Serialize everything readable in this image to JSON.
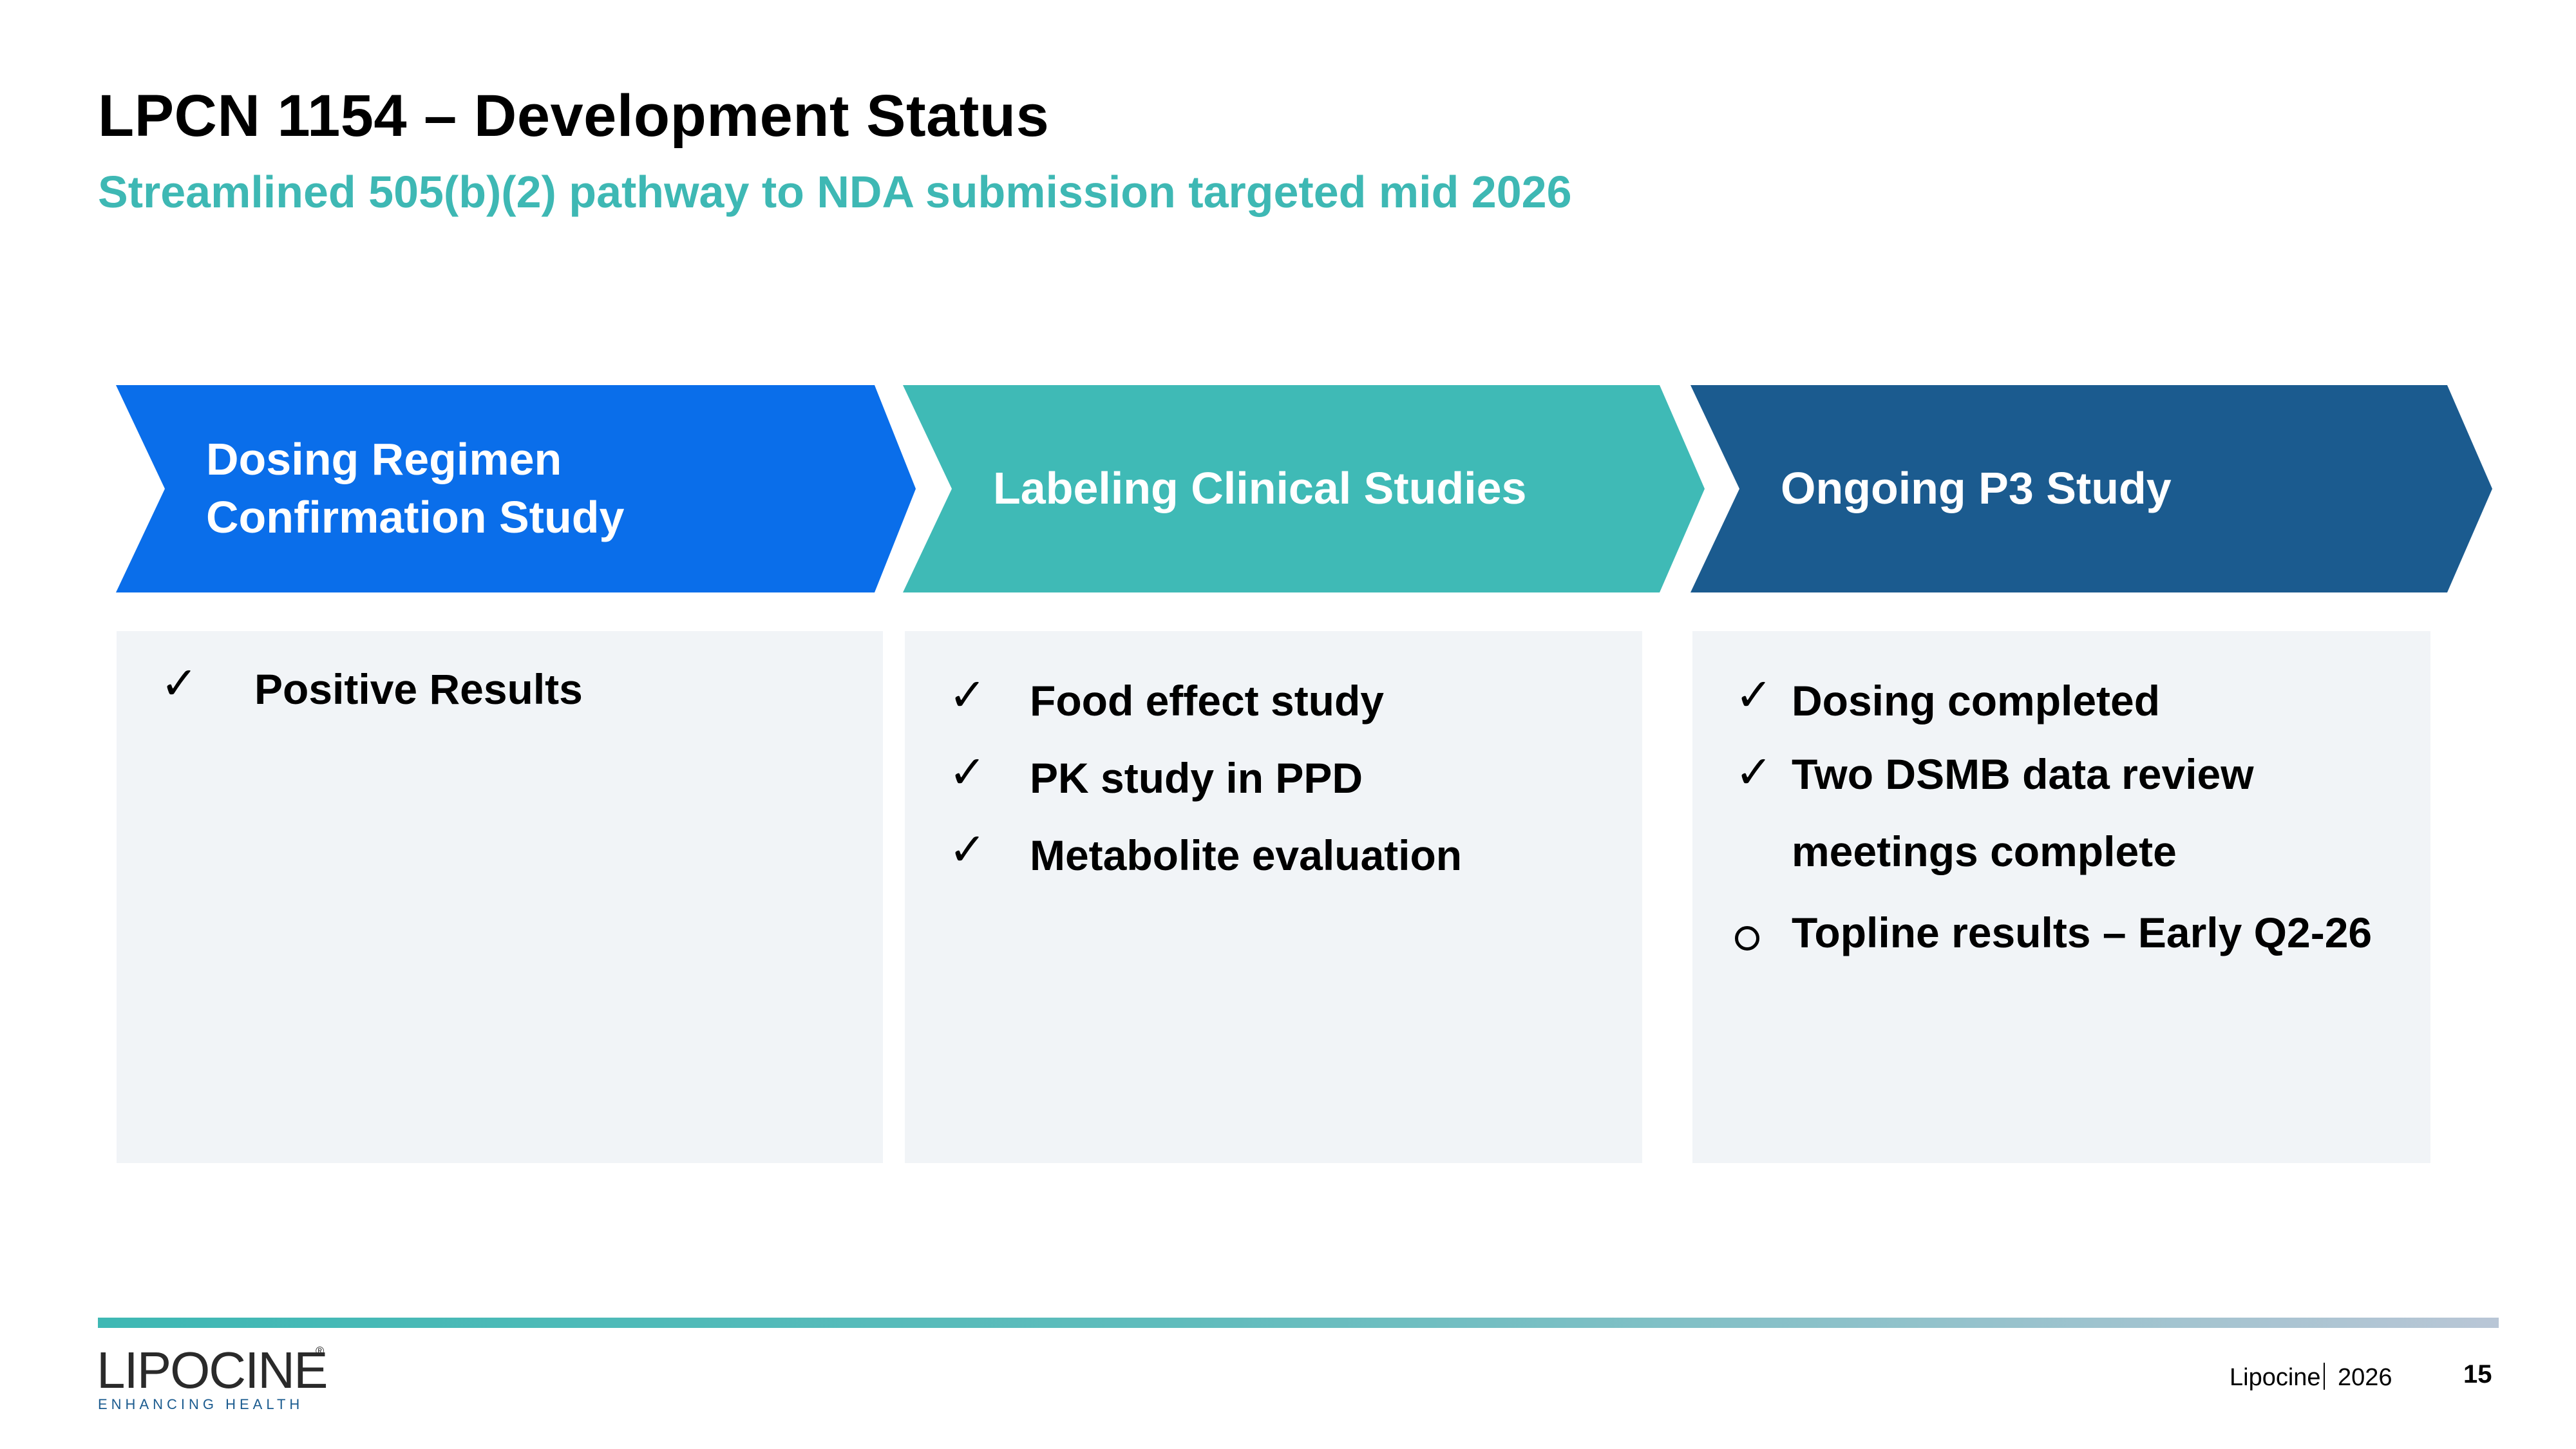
{
  "header": {
    "title": "LPCN 1154 – Development Status",
    "subtitle": "Streamlined 505(b)(2) pathway to NDA submission targeted mid 2026"
  },
  "stages": [
    {
      "heading_line1": "Dosing Regimen",
      "heading_line2": "Confirmation Study",
      "color": "#0a6eea",
      "items": [
        {
          "status": "check",
          "text": "Positive Results"
        }
      ]
    },
    {
      "heading": "Labeling Clinical Studies",
      "color": "#3fbab6",
      "items": [
        {
          "status": "check",
          "text": "Food effect study"
        },
        {
          "status": "check",
          "text": "PK study in PPD"
        },
        {
          "status": "check",
          "text": "Metabolite evaluation"
        }
      ]
    },
    {
      "heading": "Ongoing P3 Study",
      "color": "#1b5b8f",
      "items": [
        {
          "status": "check",
          "text": "Dosing completed"
        },
        {
          "status": "check",
          "text": "Two DSMB data review",
          "text_line2": "meetings complete"
        },
        {
          "status": "pending",
          "text": "Topline results – Early Q2-26"
        }
      ]
    }
  ],
  "marks": {
    "check": "✓"
  },
  "footer": {
    "logo_text": "LIPOCINE",
    "logo_registered": "®",
    "logo_tagline": "ENHANCING HEALTH",
    "company": "Lipocine",
    "year": "2026",
    "page_number": "15"
  },
  "colors": {
    "accent_teal": "#3eb8b4",
    "blue": "#0a6eea",
    "navy": "#1b5b8f",
    "panel_bg": "#f1f4f7"
  }
}
